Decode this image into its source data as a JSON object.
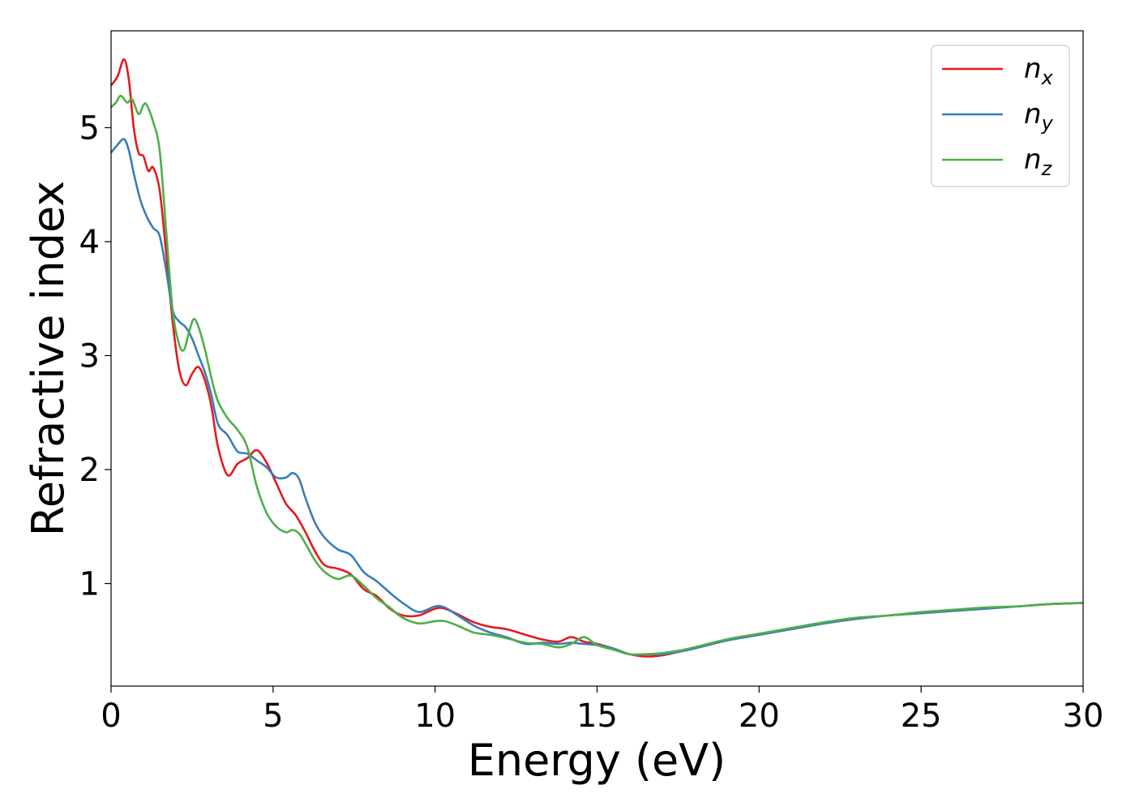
{
  "chart_data": {
    "type": "line",
    "title": "",
    "xlabel": "Energy (eV)",
    "ylabel": "Refractive index",
    "xlim": [
      0,
      30
    ],
    "ylim": [
      0.1,
      5.85
    ],
    "xticks": [
      0,
      5,
      10,
      15,
      20,
      25,
      30
    ],
    "yticks": [
      1,
      2,
      3,
      4,
      5
    ],
    "grid": false,
    "legend": {
      "placement": "top-right"
    },
    "series": [
      {
        "name": "n_x",
        "label_main": "n",
        "label_sub": "x",
        "color": "#e41a1c",
        "x": [
          0,
          0.2,
          0.4,
          0.55,
          0.7,
          0.85,
          1.0,
          1.15,
          1.3,
          1.5,
          1.7,
          1.9,
          2.1,
          2.3,
          2.5,
          2.7,
          2.9,
          3.1,
          3.3,
          3.6,
          3.9,
          4.2,
          4.5,
          4.8,
          5.1,
          5.4,
          5.7,
          6.0,
          6.3,
          6.6,
          7.0,
          7.4,
          7.8,
          8.2,
          8.6,
          9.0,
          9.5,
          10.0,
          10.3,
          10.7,
          11.2,
          11.7,
          12.2,
          12.8,
          13.3,
          13.8,
          14.2,
          14.6,
          15.0,
          15.5,
          16.0,
          16.5,
          17.0,
          17.5,
          18.0,
          19.0,
          20.0,
          21.0,
          22.0,
          23.0,
          24.0,
          25.0,
          26.0,
          27.0,
          28.0,
          29.0,
          30.0
        ],
        "y": [
          5.37,
          5.45,
          5.6,
          5.42,
          5.0,
          4.78,
          4.75,
          4.62,
          4.65,
          4.45,
          3.9,
          3.3,
          2.88,
          2.74,
          2.84,
          2.9,
          2.78,
          2.55,
          2.2,
          1.95,
          2.05,
          2.1,
          2.17,
          2.06,
          1.88,
          1.7,
          1.6,
          1.45,
          1.28,
          1.16,
          1.13,
          1.08,
          0.95,
          0.89,
          0.78,
          0.72,
          0.72,
          0.78,
          0.78,
          0.73,
          0.66,
          0.62,
          0.6,
          0.55,
          0.51,
          0.49,
          0.53,
          0.49,
          0.47,
          0.43,
          0.38,
          0.36,
          0.37,
          0.4,
          0.43,
          0.5,
          0.55,
          0.6,
          0.65,
          0.69,
          0.72,
          0.74,
          0.76,
          0.78,
          0.8,
          0.82,
          0.83
        ]
      },
      {
        "name": "n_y",
        "label_main": "n",
        "label_sub": "y",
        "color": "#377eb8",
        "x": [
          0,
          0.2,
          0.4,
          0.55,
          0.7,
          0.9,
          1.1,
          1.3,
          1.5,
          1.7,
          1.9,
          2.1,
          2.3,
          2.5,
          2.7,
          2.9,
          3.1,
          3.3,
          3.6,
          3.9,
          4.2,
          4.5,
          4.8,
          5.1,
          5.4,
          5.6,
          5.8,
          6.0,
          6.3,
          6.6,
          7.0,
          7.4,
          7.8,
          8.2,
          8.6,
          9.0,
          9.5,
          10.0,
          10.3,
          10.7,
          11.2,
          11.7,
          12.2,
          12.8,
          13.3,
          13.8,
          14.2,
          14.6,
          15.0,
          15.5,
          16.0,
          16.5,
          17.0,
          17.5,
          18.0,
          19.0,
          20.0,
          21.0,
          22.0,
          23.0,
          24.0,
          25.0,
          26.0,
          27.0,
          28.0,
          29.0,
          30.0
        ],
        "y": [
          4.78,
          4.85,
          4.9,
          4.8,
          4.6,
          4.37,
          4.22,
          4.12,
          4.05,
          3.75,
          3.4,
          3.3,
          3.25,
          3.15,
          3.0,
          2.85,
          2.65,
          2.4,
          2.3,
          2.16,
          2.14,
          2.08,
          2.02,
          1.93,
          1.93,
          1.97,
          1.92,
          1.75,
          1.53,
          1.4,
          1.3,
          1.25,
          1.1,
          1.02,
          0.92,
          0.83,
          0.75,
          0.8,
          0.79,
          0.72,
          0.63,
          0.57,
          0.53,
          0.47,
          0.48,
          0.47,
          0.48,
          0.47,
          0.46,
          0.43,
          0.38,
          0.38,
          0.38,
          0.4,
          0.43,
          0.5,
          0.55,
          0.6,
          0.65,
          0.69,
          0.72,
          0.74,
          0.76,
          0.78,
          0.8,
          0.82,
          0.83
        ]
      },
      {
        "name": "n_z",
        "label_main": "n",
        "label_sub": "z",
        "color": "#4daf4a",
        "x": [
          0,
          0.15,
          0.3,
          0.5,
          0.65,
          0.85,
          1.0,
          1.1,
          1.3,
          1.5,
          1.7,
          1.9,
          2.1,
          2.25,
          2.4,
          2.55,
          2.7,
          2.9,
          3.1,
          3.3,
          3.6,
          3.9,
          4.2,
          4.5,
          4.8,
          5.1,
          5.4,
          5.6,
          5.8,
          6.0,
          6.3,
          6.6,
          7.0,
          7.4,
          7.8,
          8.2,
          8.6,
          9.0,
          9.5,
          10.0,
          10.3,
          10.7,
          11.2,
          11.7,
          12.2,
          12.8,
          13.3,
          13.8,
          14.2,
          14.6,
          15.0,
          15.5,
          16.0,
          16.5,
          17.0,
          17.5,
          18.0,
          19.0,
          20.0,
          21.0,
          22.0,
          23.0,
          24.0,
          25.0,
          26.0,
          27.0,
          28.0,
          29.0,
          30.0
        ],
        "y": [
          5.18,
          5.22,
          5.28,
          5.22,
          5.25,
          5.12,
          5.2,
          5.2,
          5.05,
          4.8,
          4.1,
          3.4,
          3.1,
          3.05,
          3.2,
          3.32,
          3.25,
          3.05,
          2.8,
          2.6,
          2.45,
          2.35,
          2.2,
          1.85,
          1.62,
          1.5,
          1.45,
          1.47,
          1.44,
          1.35,
          1.2,
          1.1,
          1.04,
          1.07,
          0.98,
          0.87,
          0.79,
          0.7,
          0.65,
          0.67,
          0.67,
          0.63,
          0.57,
          0.55,
          0.52,
          0.48,
          0.47,
          0.44,
          0.47,
          0.53,
          0.46,
          0.42,
          0.38,
          0.38,
          0.39,
          0.41,
          0.44,
          0.51,
          0.56,
          0.61,
          0.66,
          0.7,
          0.72,
          0.75,
          0.77,
          0.79,
          0.8,
          0.82,
          0.83
        ]
      }
    ]
  }
}
